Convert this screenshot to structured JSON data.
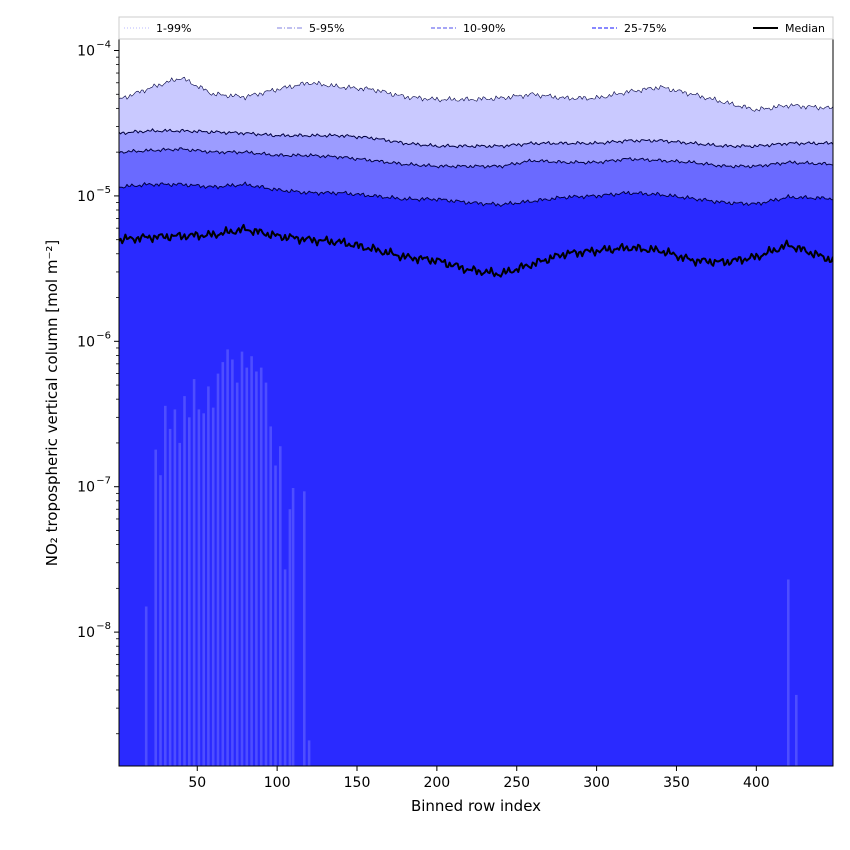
{
  "chart_data": {
    "type": "area",
    "xlabel": "Binned row index",
    "ylabel": "NO₂ tropospheric vertical column [mol m⁻²]",
    "yscale": "log",
    "xlim": [
      1,
      448
    ],
    "ylim": [
      1.2e-09,
      0.00012
    ],
    "x_ticks": [
      50,
      100,
      150,
      200,
      250,
      300,
      350,
      400
    ],
    "x_tick_labels": [
      "50",
      "100",
      "150",
      "200",
      "250",
      "300",
      "350",
      "400"
    ],
    "y_ticks": [
      1e-08,
      1e-07,
      1e-06,
      1e-05,
      0.0001
    ],
    "y_tick_labels": [
      {
        "base": "10",
        "exp": "−8"
      },
      {
        "base": "10",
        "exp": "−7"
      },
      {
        "base": "10",
        "exp": "−6"
      },
      {
        "base": "10",
        "exp": "−5"
      },
      {
        "base": "10",
        "exp": "−4"
      }
    ],
    "legend_position": "top",
    "legend": [
      {
        "label": "1-99%",
        "style": "dotted",
        "color": "#c8c8ff"
      },
      {
        "label": "5-95%",
        "style": "dashdot",
        "color": "#9a9ae8"
      },
      {
        "label": "10-90%",
        "style": "dashed",
        "color": "#7070f0"
      },
      {
        "label": "25-75%",
        "style": "dashed",
        "color": "#4040ff"
      },
      {
        "label": "Median",
        "style": "solid",
        "color": "#000000"
      }
    ],
    "x": [
      1,
      20,
      40,
      60,
      80,
      100,
      120,
      140,
      160,
      180,
      200,
      220,
      240,
      260,
      280,
      300,
      320,
      340,
      360,
      380,
      400,
      420,
      448
    ],
    "series": [
      {
        "name": "",
        "role": "upper-1-99",
        "values": [
          4.6e-05,
          5.5e-05,
          6.5e-05,
          5e-05,
          4.8e-05,
          5.4e-05,
          6e-05,
          5.6e-05,
          5.4e-05,
          4.8e-05,
          4.6e-05,
          4.6e-05,
          4.7e-05,
          5e-05,
          4.7e-05,
          4.7e-05,
          5.2e-05,
          5.6e-05,
          5e-05,
          4.4e-05,
          3.9e-05,
          4.2e-05,
          4e-05
        ]
      },
      {
        "name": "",
        "role": "upper-5-95",
        "values": [
          2.7e-05,
          2.8e-05,
          2.8e-05,
          2.75e-05,
          2.7e-05,
          2.6e-05,
          2.6e-05,
          2.6e-05,
          2.5e-05,
          2.3e-05,
          2.2e-05,
          2.2e-05,
          2.2e-05,
          2.3e-05,
          2.3e-05,
          2.3e-05,
          2.4e-05,
          2.4e-05,
          2.3e-05,
          2.2e-05,
          2.2e-05,
          2.3e-05,
          2.3e-05
        ]
      },
      {
        "name": "",
        "role": "upper-10-90",
        "values": [
          2e-05,
          2.05e-05,
          2.1e-05,
          2e-05,
          2e-05,
          1.9e-05,
          1.9e-05,
          1.85e-05,
          1.75e-05,
          1.65e-05,
          1.6e-05,
          1.6e-05,
          1.6e-05,
          1.75e-05,
          1.7e-05,
          1.7e-05,
          1.8e-05,
          1.75e-05,
          1.7e-05,
          1.6e-05,
          1.6e-05,
          1.7e-05,
          1.65e-05
        ]
      },
      {
        "name": "",
        "role": "upper-25-75",
        "values": [
          1.15e-05,
          1.2e-05,
          1.2e-05,
          1.15e-05,
          1.2e-05,
          1.1e-05,
          1.05e-05,
          1.05e-05,
          1e-05,
          9.5e-06,
          9.5e-06,
          9e-06,
          8.7e-06,
          9.2e-06,
          9.8e-06,
          1e-05,
          1.05e-05,
          1.02e-05,
          9.6e-06,
          9e-06,
          8.8e-06,
          9.8e-06,
          9.6e-06
        ]
      },
      {
        "name": "",
        "role": "median",
        "values": [
          5e-06,
          5.2e-06,
          5.3e-06,
          5.4e-06,
          5.9e-06,
          5.3e-06,
          5e-06,
          4.8e-06,
          4.3e-06,
          3.8e-06,
          3.6e-06,
          3.1e-06,
          2.9e-06,
          3.4e-06,
          4e-06,
          4.2e-06,
          4.4e-06,
          4.2e-06,
          3.6e-06,
          3.5e-06,
          3.8e-06,
          4.6e-06,
          3.6e-06
        ]
      }
    ],
    "lower_spikes": [
      {
        "x": 18,
        "top": 1.5e-08
      },
      {
        "x": 24,
        "top": 1.8e-07
      },
      {
        "x": 27,
        "top": 1.2e-07
      },
      {
        "x": 30,
        "top": 3.6e-07
      },
      {
        "x": 33,
        "top": 2.5e-07
      },
      {
        "x": 36,
        "top": 3.4e-07
      },
      {
        "x": 39,
        "top": 2e-07
      },
      {
        "x": 42,
        "top": 4.2e-07
      },
      {
        "x": 45,
        "top": 3e-07
      },
      {
        "x": 48,
        "top": 5.5e-07
      },
      {
        "x": 51,
        "top": 3.4e-07
      },
      {
        "x": 54,
        "top": 3.2e-07
      },
      {
        "x": 57,
        "top": 4.9e-07
      },
      {
        "x": 60,
        "top": 3.5e-07
      },
      {
        "x": 63,
        "top": 6e-07
      },
      {
        "x": 66,
        "top": 7.2e-07
      },
      {
        "x": 69,
        "top": 8.8e-07
      },
      {
        "x": 72,
        "top": 7.5e-07
      },
      {
        "x": 75,
        "top": 5.2e-07
      },
      {
        "x": 78,
        "top": 8.5e-07
      },
      {
        "x": 81,
        "top": 6.6e-07
      },
      {
        "x": 84,
        "top": 7.9e-07
      },
      {
        "x": 87,
        "top": 6.2e-07
      },
      {
        "x": 90,
        "top": 6.6e-07
      },
      {
        "x": 93,
        "top": 5.2e-07
      },
      {
        "x": 96,
        "top": 2.6e-07
      },
      {
        "x": 99,
        "top": 1.4e-07
      },
      {
        "x": 102,
        "top": 1.9e-07
      },
      {
        "x": 105,
        "top": 2.7e-08
      },
      {
        "x": 108,
        "top": 7e-08
      },
      {
        "x": 110,
        "top": 9.8e-08
      },
      {
        "x": 117,
        "top": 9.3e-08
      },
      {
        "x": 120,
        "top": 1.8e-09
      },
      {
        "x": 420,
        "top": 2.3e-08
      },
      {
        "x": 425,
        "top": 3.7e-09
      }
    ],
    "colors": {
      "band_1_99": "#c9c9ff",
      "band_5_95": "#9c9cff",
      "band_10_90": "#6a6aff",
      "band_25_75": "#2a2aff",
      "spikes": "#5555ff",
      "median": "#000000",
      "band_edge": "#000040"
    }
  }
}
